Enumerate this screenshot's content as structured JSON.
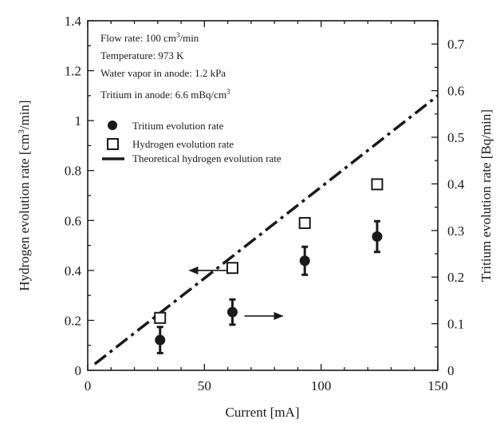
{
  "chart_data": {
    "type": "scatter",
    "x": {
      "label": "Current [mA]",
      "range": [
        0,
        150
      ],
      "ticks": [
        "0",
        "50",
        "100",
        "150"
      ]
    },
    "y_left": {
      "label_parts": [
        "Hydrogen evolution rate [cm",
        "3",
        "/min]"
      ],
      "range": [
        0,
        1.4
      ],
      "ticks": [
        "0",
        "0.2",
        "0.4",
        "0.6",
        "0.8",
        "1",
        "1.2",
        "1.4"
      ]
    },
    "y_right": {
      "label": "Tritium evolution rate [Bq/min]",
      "range": [
        0,
        0.75
      ],
      "ticks": [
        "0",
        "0.1",
        "0.2",
        "0.3",
        "0.4",
        "0.5",
        "0.6",
        "0.7"
      ]
    },
    "conditions": {
      "flow_parts": [
        "Flow rate: 100 cm",
        "3",
        "/min"
      ],
      "temperature": "Temperature: 973 K",
      "water_vapor": "Water vapor in anode: 1.2 kPa",
      "tritium_parts": [
        "Tritium in anode: 6.6 mBq/cm",
        "3"
      ]
    },
    "legend": {
      "position": "top-left",
      "tritium": "Tritium evolution rate",
      "hydrogen": "Hydrogen evolution rate",
      "theory": "Theoretical hydrogen evolution rate"
    },
    "series": [
      {
        "name": "Tritium evolution rate",
        "axis": "right",
        "marker": "filled-circle",
        "points": [
          {
            "x": 31,
            "y": 0.065,
            "err": 0.028
          },
          {
            "x": 62,
            "y": 0.125,
            "err": 0.027
          },
          {
            "x": 93,
            "y": 0.235,
            "err": 0.03
          },
          {
            "x": 124,
            "y": 0.287,
            "err": 0.033
          }
        ]
      },
      {
        "name": "Hydrogen evolution rate",
        "axis": "left",
        "marker": "open-square",
        "points": [
          {
            "x": 31,
            "y": 0.21
          },
          {
            "x": 62,
            "y": 0.41
          },
          {
            "x": 93,
            "y": 0.59
          },
          {
            "x": 124,
            "y": 0.745
          }
        ]
      },
      {
        "name": "Theoretical hydrogen evolution rate",
        "axis": "left",
        "line": "dash-dot",
        "points": [
          {
            "x": 3,
            "y": 0.025
          },
          {
            "x": 150,
            "y": 1.1
          }
        ]
      }
    ],
    "annotations": [
      {
        "type": "arrow",
        "points_to": "left axis",
        "at": {
          "x": 62,
          "y": 0.4
        }
      },
      {
        "type": "arrow",
        "points_to": "right axis",
        "at": {
          "x": 62,
          "y": 0.12
        }
      }
    ]
  }
}
